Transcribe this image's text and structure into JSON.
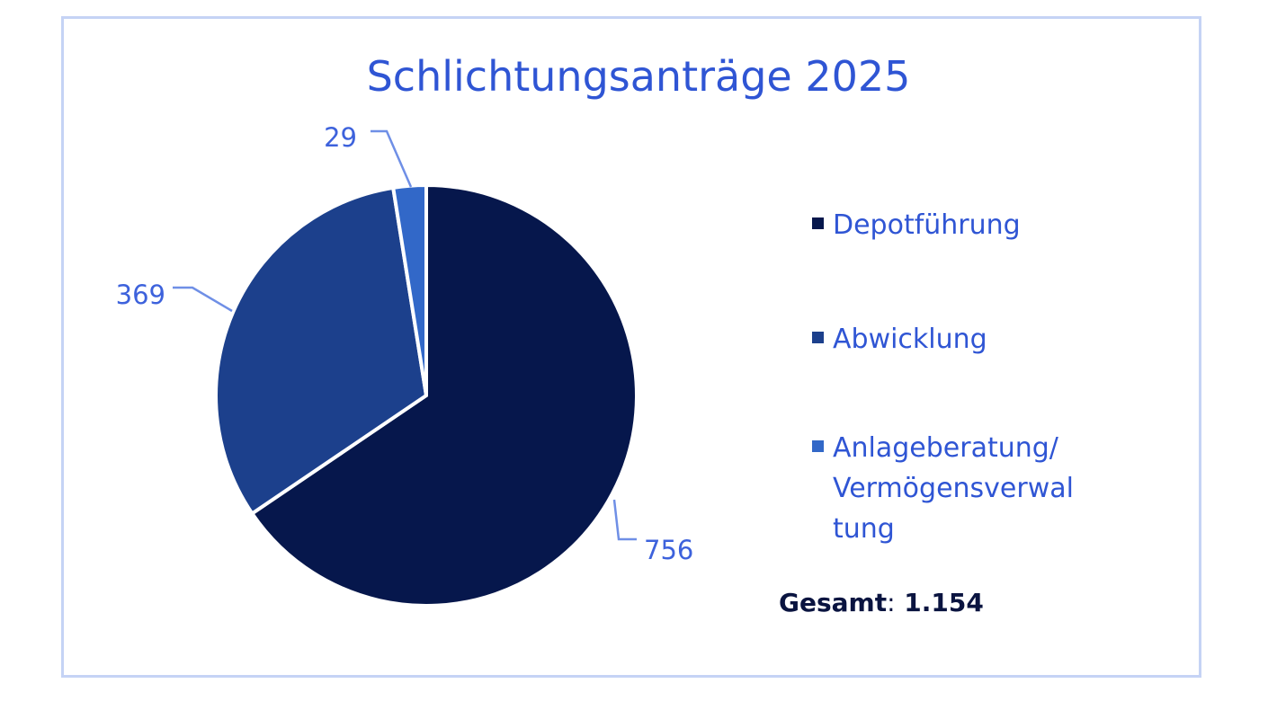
{
  "chart_data": {
    "type": "pie",
    "title": "Schlichtungsanträge 2025",
    "categories": [
      "Depotführung",
      "Abwicklung",
      "Anlageberatung/ Vermögensverwaltung"
    ],
    "legend_lines": [
      [
        "Depotführung"
      ],
      [
        "Abwicklung"
      ],
      [
        "Anlageberatung/",
        "Vermögensverwal",
        "tung"
      ]
    ],
    "values": [
      756,
      369,
      29
    ],
    "data_labels": [
      "756",
      "369",
      "29"
    ],
    "colors": [
      "#06174c",
      "#1c408c",
      "#3268c8"
    ],
    "legend_placement": "right",
    "total_label": "Gesamt",
    "total_separator": ":",
    "total_value": "1.154"
  }
}
